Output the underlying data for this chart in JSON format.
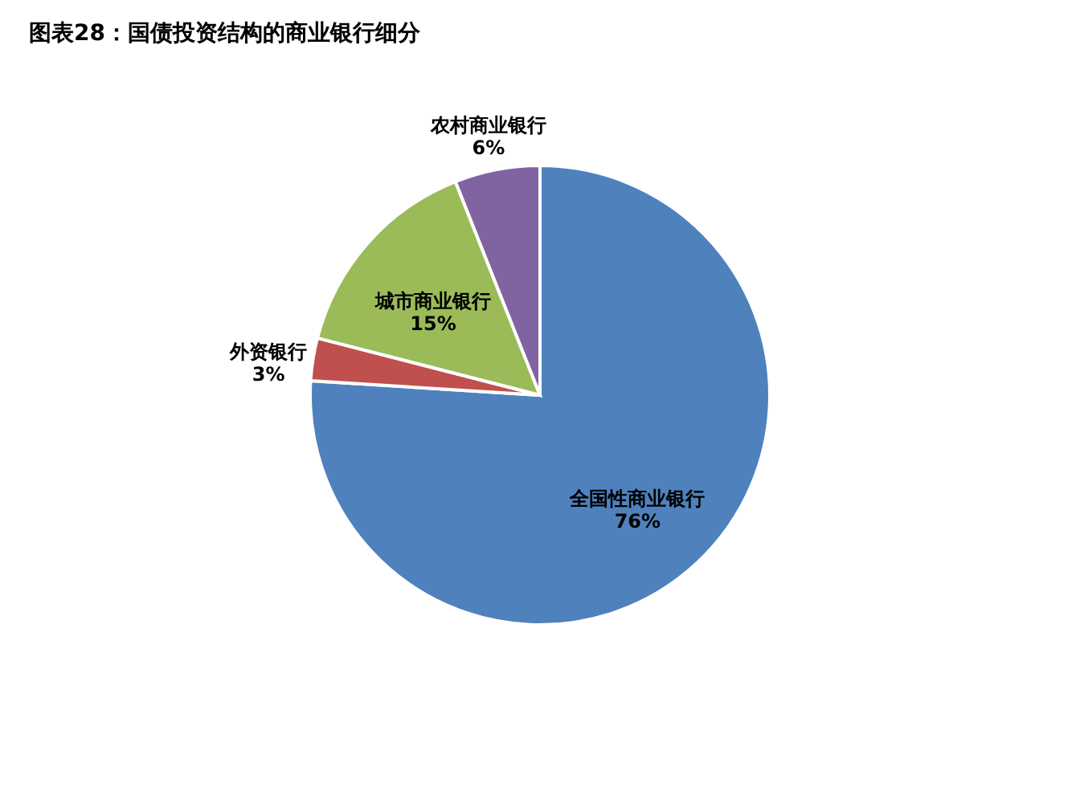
{
  "chart_data": {
    "type": "pie",
    "title": "图表28：国债投资结构的商业银行细分",
    "categories": [
      "全国性商业银行",
      "外资银行",
      "城市商业银行",
      "农村商业银行"
    ],
    "values": [
      76,
      3,
      15,
      6
    ],
    "value_labels": [
      "76%",
      "3%",
      "15%",
      "6%"
    ],
    "colors": [
      "#4f81bd",
      "#c0504d",
      "#9bbb59",
      "#8064a2"
    ]
  }
}
